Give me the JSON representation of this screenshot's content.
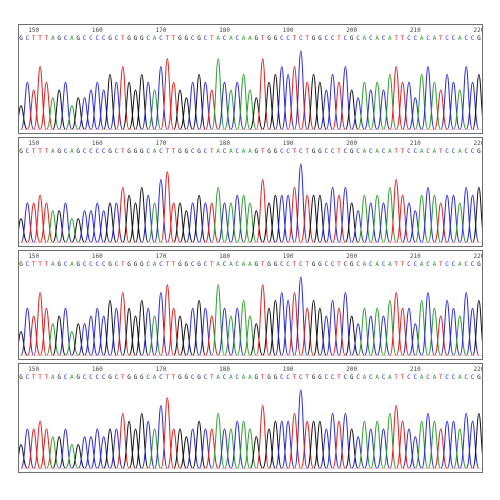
{
  "colors": {
    "A": "#2e9e2e",
    "C": "#2a2ad6",
    "G": "#111111",
    "T": "#e02020",
    "frame": "#6e6e6e"
  },
  "chart_data": {
    "type": "chromatogram",
    "start_position": 148,
    "sequence": "GCTTTAGCAGCCCCGCTGGGCACTTGGCGCTACACAAGTGGCCTCTGGCCTCGCACACATTCCACATCCACCG",
    "tick_labels": [
      "150",
      "160",
      "170",
      "180",
      "190",
      "200",
      "210",
      "220"
    ],
    "traces": [
      {
        "peaks": [
          3,
          6,
          5,
          8,
          6,
          4,
          5,
          6,
          3,
          4,
          4,
          5,
          6,
          5,
          7,
          6,
          8,
          6,
          5,
          7,
          6,
          5,
          8,
          9,
          6,
          5,
          4,
          6,
          7,
          6,
          5,
          9,
          6,
          5,
          6,
          7,
          5,
          4,
          9,
          6,
          7,
          8,
          7,
          8,
          10,
          6,
          7,
          6,
          5,
          7,
          6,
          8,
          5,
          4,
          6,
          5,
          6,
          5,
          7,
          8,
          6,
          6,
          4,
          7,
          8,
          6,
          5,
          7,
          6,
          5,
          8,
          6,
          7
        ]
      },
      {
        "peaks": [
          3,
          5,
          5,
          6,
          5,
          4,
          4,
          5,
          3,
          3,
          4,
          4,
          5,
          4,
          5,
          5,
          7,
          6,
          5,
          7,
          6,
          5,
          8,
          9,
          5,
          5,
          4,
          5,
          6,
          5,
          5,
          7,
          5,
          5,
          6,
          6,
          5,
          4,
          8,
          5,
          6,
          6,
          6,
          7,
          10,
          6,
          6,
          6,
          5,
          7,
          6,
          7,
          5,
          4,
          6,
          5,
          6,
          5,
          7,
          8,
          6,
          5,
          4,
          6,
          7,
          6,
          5,
          6,
          6,
          5,
          7,
          6,
          7
        ]
      },
      {
        "peaks": [
          3,
          6,
          5,
          8,
          6,
          4,
          5,
          6,
          3,
          4,
          4,
          5,
          6,
          5,
          7,
          6,
          8,
          6,
          5,
          7,
          6,
          5,
          8,
          9,
          6,
          5,
          4,
          6,
          7,
          6,
          5,
          9,
          6,
          5,
          6,
          7,
          5,
          4,
          9,
          6,
          7,
          8,
          7,
          8,
          10,
          6,
          7,
          6,
          5,
          7,
          6,
          8,
          5,
          4,
          6,
          5,
          6,
          5,
          7,
          8,
          6,
          6,
          4,
          7,
          8,
          6,
          5,
          7,
          6,
          5,
          8,
          6,
          7
        ]
      },
      {
        "peaks": [
          3,
          5,
          5,
          6,
          5,
          4,
          4,
          5,
          3,
          3,
          4,
          4,
          5,
          4,
          5,
          5,
          7,
          6,
          5,
          7,
          6,
          5,
          8,
          9,
          5,
          5,
          4,
          5,
          6,
          5,
          5,
          7,
          5,
          5,
          6,
          6,
          5,
          4,
          8,
          5,
          6,
          6,
          6,
          7,
          10,
          6,
          6,
          6,
          5,
          7,
          6,
          7,
          5,
          4,
          6,
          5,
          6,
          5,
          7,
          8,
          6,
          5,
          4,
          6,
          7,
          6,
          5,
          6,
          6,
          5,
          7,
          6,
          7
        ]
      }
    ]
  }
}
